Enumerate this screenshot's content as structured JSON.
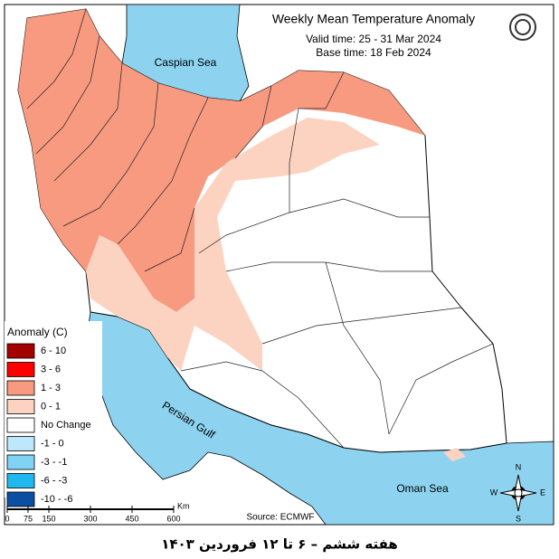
{
  "header": {
    "title": "Weekly Mean Temperature Anomaly",
    "valid_time": "Valid time: 25 - 31 Mar 2024",
    "base_time": "Base time: 18 Feb 2024"
  },
  "legend": {
    "title": "Anomaly (C)",
    "items": [
      {
        "label": "6 - 10",
        "color": "#a50000"
      },
      {
        "label": "3 - 6",
        "color": "#ff0000"
      },
      {
        "label": "1 - 3",
        "color": "#f79a80"
      },
      {
        "label": "0 - 1",
        "color": "#fcd3c1"
      },
      {
        "label": "No Change",
        "color": "#ffffff"
      },
      {
        "label": "-1 - 0",
        "color": "#bde8fb"
      },
      {
        "label": "-3 - -1",
        "color": "#7fd3f5"
      },
      {
        "label": "-6 - -3",
        "color": "#1fb9ef"
      },
      {
        "label": "-10 - -6",
        "color": "#0b4fa3"
      }
    ]
  },
  "labels": {
    "caspian": "Caspian Sea",
    "gulf": "Persian Gulf",
    "oman": "Oman Sea"
  },
  "scale": {
    "ticks": [
      0,
      75,
      150,
      300,
      450,
      600
    ],
    "unit": "Km"
  },
  "source": "Source: ECMWF",
  "compass": {
    "n": "N",
    "e": "E",
    "s": "S",
    "w": "W"
  },
  "caption": "هفته ششم – ۶ تا ۱۲ فروردین ۱۴۰۳"
}
